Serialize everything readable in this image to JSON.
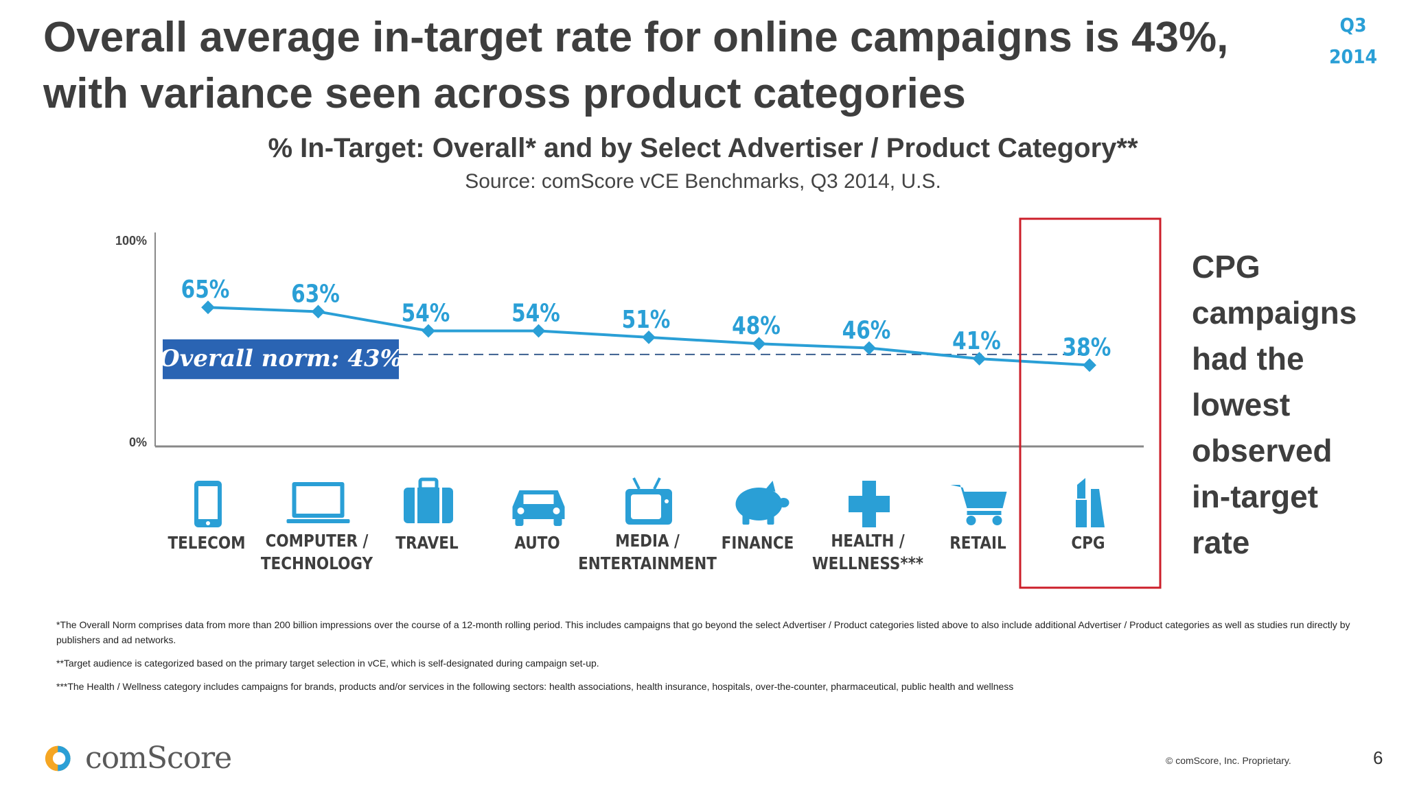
{
  "header": {
    "headline_line1": "Overall average in-target rate for online campaigns is 43%,",
    "headline_line2": "with variance seen across product categories",
    "quarter": "Q3",
    "year": "2014"
  },
  "chart_data": {
    "type": "line",
    "title": "% In-Target: Overall* and by Select Advertiser / Product Category**",
    "subtitle": "Source: comScore vCE Benchmarks, Q3 2014, U.S.",
    "categories": [
      "TELECOM",
      "COMPUTER / TECHNOLOGY",
      "TRAVEL",
      "AUTO",
      "MEDIA / ENTERTAINMENT",
      "FINANCE",
      "HEALTH / WELLNESS***",
      "RETAIL",
      "CPG"
    ],
    "category_lines": [
      [
        "TELECOM"
      ],
      [
        "COMPUTER /",
        "TECHNOLOGY"
      ],
      [
        "TRAVEL"
      ],
      [
        "AUTO"
      ],
      [
        "MEDIA /",
        "ENTERTAINMENT"
      ],
      [
        "FINANCE"
      ],
      [
        "HEALTH /",
        "WELLNESS***"
      ],
      [
        "RETAIL"
      ],
      [
        "CPG"
      ]
    ],
    "icons": [
      "smartphone-icon",
      "laptop-icon",
      "suitcase-icon",
      "car-icon",
      "tv-icon",
      "piggy-bank-icon",
      "medical-cross-icon",
      "shopping-cart-icon",
      "lipstick-icon"
    ],
    "values": [
      65,
      63,
      54,
      54,
      51,
      48,
      46,
      41,
      38
    ],
    "value_labels": [
      "65%",
      "63%",
      "54%",
      "54%",
      "51%",
      "48%",
      "46%",
      "41%",
      "38%"
    ],
    "reference_line": {
      "value": 43,
      "label": "Overall norm: 43%"
    },
    "y_tick_labels": [
      "100%",
      "0%"
    ],
    "ylim": [
      0,
      100
    ],
    "highlight_category": "CPG",
    "line_color": "#2a9fd6",
    "norm_label_bg": "#2a64b3",
    "highlight_color": "#cc1f2a",
    "grid": false
  },
  "side_note": {
    "lines": [
      "CPG",
      "campaigns",
      "had the",
      "lowest",
      "observed",
      "in-target",
      "rate"
    ]
  },
  "footnotes": {
    "note1": "*The Overall Norm comprises data from more than 200 billion impressions over the course of a 12-month rolling period. This includes campaigns that go beyond the select Advertiser / Product categories listed above to also include additional Advertiser / Product categories as well as studies run directly by publishers and ad networks.",
    "note2": "**Target audience is categorized based on the primary target selection in vCE, which is self-designated during campaign set-up.",
    "note3": "***The Health / Wellness category includes campaigns for brands, products and/or services in the following sectors: health associations, health insurance, hospitals, over-the-counter, pharmaceutical, public health and wellness"
  },
  "footer": {
    "logo_text": "comScore",
    "copyright": "© comScore, Inc. Proprietary.",
    "page_number": "6"
  }
}
